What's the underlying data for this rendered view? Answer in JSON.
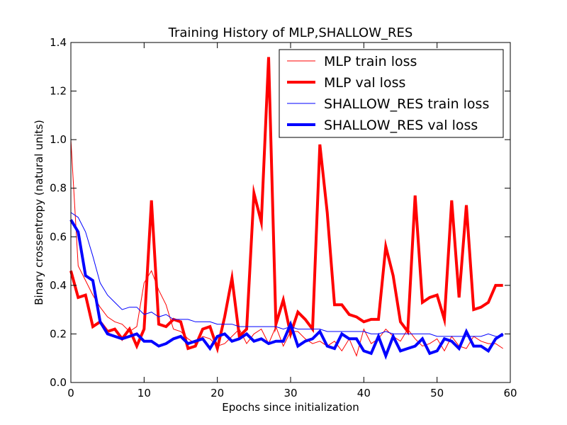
{
  "chart_data": {
    "type": "line",
    "title": "Training History of MLP,SHALLOW_RES",
    "xlabel": "Epochs since initialization",
    "ylabel": "Binary crossentropy (natural units)",
    "xlim": [
      0,
      60
    ],
    "ylim": [
      0,
      1.4
    ],
    "xticks": [
      0,
      10,
      20,
      30,
      40,
      50,
      60
    ],
    "yticks": [
      0.0,
      0.2,
      0.4,
      0.6,
      0.8,
      1.0,
      1.2,
      1.4
    ],
    "xtick_labels": [
      "0",
      "10",
      "20",
      "30",
      "40",
      "50",
      "60"
    ],
    "ytick_labels": [
      "0.0",
      "0.2",
      "0.4",
      "0.6",
      "0.8",
      "1.0",
      "1.2",
      "1.4"
    ],
    "grid": false,
    "legend_position": "top-right",
    "x": [
      0,
      1,
      2,
      3,
      4,
      5,
      6,
      7,
      8,
      9,
      10,
      11,
      12,
      13,
      14,
      15,
      16,
      17,
      18,
      19,
      20,
      21,
      22,
      23,
      24,
      25,
      26,
      27,
      28,
      29,
      30,
      31,
      32,
      33,
      34,
      35,
      36,
      37,
      38,
      39,
      40,
      41,
      42,
      43,
      44,
      45,
      46,
      47,
      48,
      49,
      50,
      51,
      52,
      53,
      54,
      55,
      56,
      57,
      58,
      59
    ],
    "series": [
      {
        "name": "MLP train loss",
        "color": "#ff0000",
        "width": "thin",
        "values": [
          1.0,
          0.48,
          0.42,
          0.36,
          0.31,
          0.27,
          0.25,
          0.24,
          0.21,
          0.23,
          0.41,
          0.46,
          0.38,
          0.32,
          0.22,
          0.21,
          0.18,
          0.16,
          0.19,
          0.18,
          0.15,
          0.16,
          0.19,
          0.22,
          0.16,
          0.2,
          0.22,
          0.16,
          0.23,
          0.15,
          0.21,
          0.21,
          0.18,
          0.16,
          0.17,
          0.15,
          0.17,
          0.13,
          0.18,
          0.11,
          0.22,
          0.16,
          0.18,
          0.22,
          0.19,
          0.17,
          0.22,
          0.18,
          0.15,
          0.16,
          0.18,
          0.13,
          0.19,
          0.15,
          0.14,
          0.19,
          0.17,
          0.16,
          0.16,
          0.14
        ]
      },
      {
        "name": "MLP val loss",
        "color": "#ff0000",
        "width": "thick",
        "values": [
          0.46,
          0.35,
          0.36,
          0.23,
          0.25,
          0.21,
          0.22,
          0.18,
          0.22,
          0.15,
          0.22,
          0.75,
          0.24,
          0.23,
          0.26,
          0.25,
          0.14,
          0.15,
          0.22,
          0.23,
          0.14,
          0.27,
          0.43,
          0.19,
          0.22,
          0.78,
          0.66,
          1.34,
          0.24,
          0.34,
          0.2,
          0.29,
          0.26,
          0.22,
          0.98,
          0.7,
          0.32,
          0.32,
          0.28,
          0.27,
          0.25,
          0.26,
          0.26,
          0.56,
          0.44,
          0.25,
          0.21,
          0.77,
          0.33,
          0.35,
          0.36,
          0.26,
          0.75,
          0.35,
          0.73,
          0.3,
          0.31,
          0.33,
          0.4,
          0.4
        ]
      },
      {
        "name": "SHALLOW_RES train loss",
        "color": "#0000ff",
        "width": "thin",
        "values": [
          0.7,
          0.68,
          0.62,
          0.52,
          0.41,
          0.36,
          0.33,
          0.3,
          0.31,
          0.31,
          0.28,
          0.29,
          0.27,
          0.28,
          0.26,
          0.26,
          0.26,
          0.25,
          0.25,
          0.25,
          0.24,
          0.24,
          0.24,
          0.23,
          0.23,
          0.23,
          0.23,
          0.23,
          0.23,
          0.22,
          0.23,
          0.22,
          0.22,
          0.22,
          0.22,
          0.21,
          0.21,
          0.21,
          0.21,
          0.21,
          0.21,
          0.2,
          0.2,
          0.21,
          0.2,
          0.2,
          0.2,
          0.2,
          0.2,
          0.2,
          0.19,
          0.19,
          0.19,
          0.19,
          0.19,
          0.19,
          0.19,
          0.2,
          0.19,
          0.19
        ]
      },
      {
        "name": "SHALLOW_RES val loss",
        "color": "#0000ff",
        "width": "thick",
        "values": [
          0.67,
          0.62,
          0.44,
          0.42,
          0.25,
          0.2,
          0.19,
          0.18,
          0.19,
          0.2,
          0.17,
          0.17,
          0.15,
          0.16,
          0.18,
          0.19,
          0.16,
          0.17,
          0.18,
          0.14,
          0.19,
          0.2,
          0.17,
          0.18,
          0.2,
          0.17,
          0.18,
          0.16,
          0.17,
          0.17,
          0.24,
          0.15,
          0.17,
          0.18,
          0.21,
          0.15,
          0.14,
          0.2,
          0.18,
          0.18,
          0.13,
          0.12,
          0.19,
          0.11,
          0.19,
          0.13,
          0.14,
          0.15,
          0.18,
          0.12,
          0.13,
          0.18,
          0.17,
          0.14,
          0.21,
          0.15,
          0.15,
          0.13,
          0.18,
          0.2
        ]
      }
    ]
  }
}
